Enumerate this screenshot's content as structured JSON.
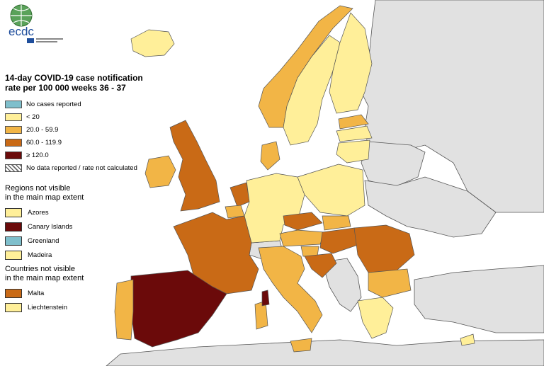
{
  "logo": {
    "text": "ecdc"
  },
  "title": {
    "line1": "14-day COVID-19 case notification",
    "line2": "rate per 100 000 weeks 36 - 37"
  },
  "legend": [
    {
      "label": "No cases reported",
      "color": "#7fbfcc"
    },
    {
      "label": "< 20",
      "color": "#ffef99"
    },
    {
      "label": "20.0 - 59.9",
      "color": "#f2b546"
    },
    {
      "label": "60.0 - 119.9",
      "color": "#c96a16"
    },
    {
      "label": "≥ 120.0",
      "color": "#6b0a0a"
    },
    {
      "label": "No data reported / rate not calculated",
      "color": "hatched"
    }
  ],
  "regions_title": {
    "line1": "Regions not visible",
    "line2": "in the main map extent"
  },
  "regions": [
    {
      "label": "Azores",
      "color": "#ffef99"
    },
    {
      "label": "Canary Islands",
      "color": "#6b0a0a"
    },
    {
      "label": "Greenland",
      "color": "#7fbfcc"
    },
    {
      "label": "Madeira",
      "color": "#ffef99"
    }
  ],
  "countries_title": {
    "line1": "Countries not visible",
    "line2": "in the main map extent"
  },
  "countries": [
    {
      "label": "Malta",
      "color": "#c96a16"
    },
    {
      "label": "Liechtenstein",
      "color": "#ffef99"
    }
  ],
  "colors": {
    "sea": "#ffffff",
    "non_eu_land": "#e1e1e1",
    "border": "#555555"
  }
}
